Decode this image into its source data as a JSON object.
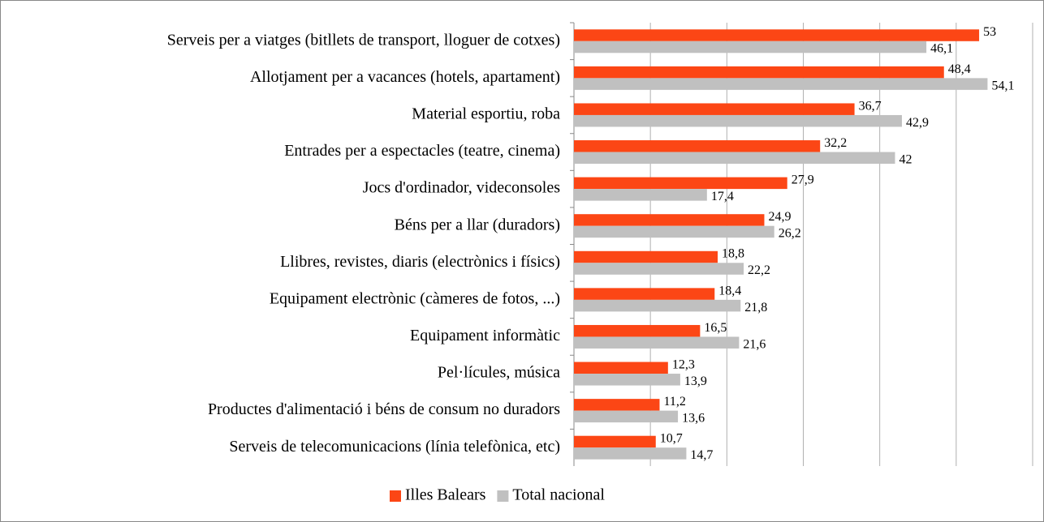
{
  "chart_data": {
    "type": "bar",
    "orientation": "horizontal",
    "categories": [
      "Serveis per a viatges (bitllets de transport, lloguer de cotxes)",
      "Allotjament per a vacances (hotels, apartament)",
      "Material esportiu, roba",
      "Entrades per a espectacles (teatre, cinema)",
      "Jocs d'ordinador, videconsoles",
      "Béns per a llar (duradors)",
      "Llibres, revistes, diaris (electrònics i físics)",
      "Equipament electrònic (càmeres de fotos, ...)",
      "Equipament informàtic",
      "Pel·lícules, música",
      "Productes d'alimentació i béns de consum no duradors",
      "Serveis de telecomunicacions (línia telefònica, etc)"
    ],
    "series": [
      {
        "name": "Illes Balears",
        "color": "#fc4615",
        "values": [
          53,
          48.4,
          36.7,
          32.2,
          27.9,
          24.9,
          18.8,
          18.4,
          16.5,
          12.3,
          11.2,
          10.7
        ],
        "value_labels": [
          "53",
          "48,4",
          "36,7",
          "32,2",
          "27,9",
          "24,9",
          "18,8",
          "18,4",
          "16,5",
          "12,3",
          "11,2",
          "10,7"
        ]
      },
      {
        "name": "Total nacional",
        "color": "#c0c0c0",
        "values": [
          46.1,
          54.1,
          42.9,
          42,
          17.4,
          26.2,
          22.2,
          21.8,
          21.6,
          13.9,
          13.6,
          14.7
        ],
        "value_labels": [
          "46,1",
          "54,1",
          "42,9",
          "42",
          "17,4",
          "26,2",
          "22,2",
          "21,8",
          "21,6",
          "13,9",
          "13,6",
          "14,7"
        ]
      }
    ],
    "xlim": [
      0,
      60
    ],
    "xticks": [
      0,
      10,
      20,
      30,
      40,
      50,
      60
    ],
    "grid": true,
    "legend": "bottom"
  }
}
